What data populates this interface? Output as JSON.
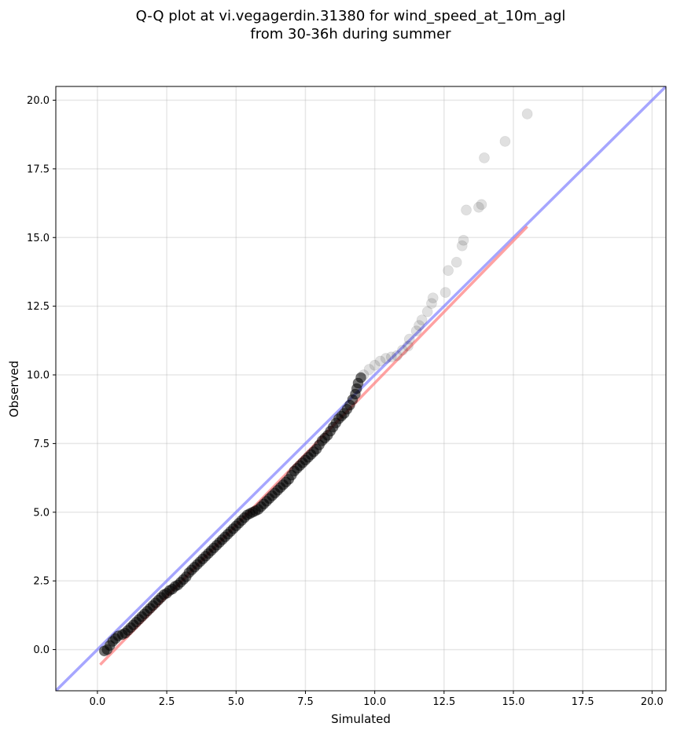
{
  "chart_data": {
    "type": "scatter",
    "title_line1": "Q-Q plot at vi.vegagerdin.31380 for wind_speed_at_10m_agl",
    "title_line2": "from 30-36h during summer",
    "xlabel": "Simulated",
    "ylabel": "Observed",
    "xlim": [
      -1.5,
      20.5
    ],
    "ylim": [
      -1.5,
      20.5
    ],
    "xticks": [
      0.0,
      2.5,
      5.0,
      7.5,
      10.0,
      12.5,
      15.0,
      17.5,
      20.0
    ],
    "yticks": [
      0.0,
      2.5,
      5.0,
      7.5,
      10.0,
      12.5,
      15.0,
      17.5,
      20.0
    ],
    "xtick_labels": [
      "0.0",
      "2.5",
      "5.0",
      "7.5",
      "10.0",
      "12.5",
      "15.0",
      "17.5",
      "20.0"
    ],
    "ytick_labels": [
      "0.0",
      "2.5",
      "5.0",
      "7.5",
      "10.0",
      "12.5",
      "15.0",
      "17.5",
      "20.0"
    ],
    "grid": true,
    "reference_line": {
      "description": "identity y = x",
      "color": "#8080ff"
    },
    "fit_line": {
      "x": [
        0.1,
        15.5
      ],
      "y": [
        -0.55,
        15.4
      ],
      "color": "#ff7b7b"
    },
    "point_color": "#000000",
    "quantiles": [
      {
        "x": 0.25,
        "y": -0.05
      },
      {
        "x": 0.35,
        "y": 0.0
      },
      {
        "x": 0.45,
        "y": 0.15
      },
      {
        "x": 0.55,
        "y": 0.3
      },
      {
        "x": 0.65,
        "y": 0.4
      },
      {
        "x": 0.75,
        "y": 0.5
      },
      {
        "x": 0.9,
        "y": 0.55
      },
      {
        "x": 1.0,
        "y": 0.6
      },
      {
        "x": 1.1,
        "y": 0.7
      },
      {
        "x": 1.2,
        "y": 0.8
      },
      {
        "x": 1.3,
        "y": 0.9
      },
      {
        "x": 1.4,
        "y": 1.0
      },
      {
        "x": 1.5,
        "y": 1.1
      },
      {
        "x": 1.6,
        "y": 1.2
      },
      {
        "x": 1.7,
        "y": 1.3
      },
      {
        "x": 1.8,
        "y": 1.4
      },
      {
        "x": 1.9,
        "y": 1.5
      },
      {
        "x": 2.0,
        "y": 1.6
      },
      {
        "x": 2.1,
        "y": 1.7
      },
      {
        "x": 2.2,
        "y": 1.8
      },
      {
        "x": 2.3,
        "y": 1.9
      },
      {
        "x": 2.4,
        "y": 2.0
      },
      {
        "x": 2.5,
        "y": 2.05
      },
      {
        "x": 2.6,
        "y": 2.15
      },
      {
        "x": 2.7,
        "y": 2.2
      },
      {
        "x": 2.8,
        "y": 2.3
      },
      {
        "x": 2.9,
        "y": 2.35
      },
      {
        "x": 3.0,
        "y": 2.45
      },
      {
        "x": 3.1,
        "y": 2.55
      },
      {
        "x": 3.2,
        "y": 2.65
      },
      {
        "x": 3.3,
        "y": 2.8
      },
      {
        "x": 3.4,
        "y": 2.9
      },
      {
        "x": 3.5,
        "y": 3.0
      },
      {
        "x": 3.6,
        "y": 3.1
      },
      {
        "x": 3.7,
        "y": 3.2
      },
      {
        "x": 3.8,
        "y": 3.3
      },
      {
        "x": 3.9,
        "y": 3.4
      },
      {
        "x": 4.0,
        "y": 3.5
      },
      {
        "x": 4.1,
        "y": 3.6
      },
      {
        "x": 4.2,
        "y": 3.7
      },
      {
        "x": 4.3,
        "y": 3.8
      },
      {
        "x": 4.4,
        "y": 3.9
      },
      {
        "x": 4.5,
        "y": 4.0
      },
      {
        "x": 4.6,
        "y": 4.1
      },
      {
        "x": 4.7,
        "y": 4.2
      },
      {
        "x": 4.8,
        "y": 4.3
      },
      {
        "x": 4.9,
        "y": 4.4
      },
      {
        "x": 5.0,
        "y": 4.5
      },
      {
        "x": 5.1,
        "y": 4.6
      },
      {
        "x": 5.2,
        "y": 4.7
      },
      {
        "x": 5.3,
        "y": 4.8
      },
      {
        "x": 5.4,
        "y": 4.9
      },
      {
        "x": 5.5,
        "y": 4.95
      },
      {
        "x": 5.6,
        "y": 5.0
      },
      {
        "x": 5.7,
        "y": 5.05
      },
      {
        "x": 5.8,
        "y": 5.1
      },
      {
        "x": 5.9,
        "y": 5.2
      },
      {
        "x": 6.0,
        "y": 5.3
      },
      {
        "x": 6.1,
        "y": 5.4
      },
      {
        "x": 6.2,
        "y": 5.5
      },
      {
        "x": 6.3,
        "y": 5.6
      },
      {
        "x": 6.4,
        "y": 5.7
      },
      {
        "x": 6.5,
        "y": 5.8
      },
      {
        "x": 6.6,
        "y": 5.9
      },
      {
        "x": 6.7,
        "y": 6.0
      },
      {
        "x": 6.8,
        "y": 6.1
      },
      {
        "x": 6.9,
        "y": 6.2
      },
      {
        "x": 7.0,
        "y": 6.35
      },
      {
        "x": 7.1,
        "y": 6.5
      },
      {
        "x": 7.2,
        "y": 6.6
      },
      {
        "x": 7.3,
        "y": 6.7
      },
      {
        "x": 7.4,
        "y": 6.8
      },
      {
        "x": 7.5,
        "y": 6.9
      },
      {
        "x": 7.6,
        "y": 7.0
      },
      {
        "x": 7.7,
        "y": 7.1
      },
      {
        "x": 7.8,
        "y": 7.2
      },
      {
        "x": 7.9,
        "y": 7.3
      },
      {
        "x": 8.0,
        "y": 7.45
      },
      {
        "x": 8.1,
        "y": 7.6
      },
      {
        "x": 8.2,
        "y": 7.7
      },
      {
        "x": 8.3,
        "y": 7.8
      },
      {
        "x": 8.4,
        "y": 7.95
      },
      {
        "x": 8.5,
        "y": 8.1
      },
      {
        "x": 8.6,
        "y": 8.25
      },
      {
        "x": 8.7,
        "y": 8.4
      },
      {
        "x": 8.8,
        "y": 8.5
      },
      {
        "x": 8.9,
        "y": 8.6
      },
      {
        "x": 9.0,
        "y": 8.75
      },
      {
        "x": 9.1,
        "y": 8.9
      },
      {
        "x": 9.2,
        "y": 9.1
      },
      {
        "x": 9.3,
        "y": 9.3
      },
      {
        "x": 9.35,
        "y": 9.5
      },
      {
        "x": 9.4,
        "y": 9.7
      },
      {
        "x": 9.5,
        "y": 9.9
      },
      {
        "x": 9.6,
        "y": 10.0
      },
      {
        "x": 9.8,
        "y": 10.2
      },
      {
        "x": 10.0,
        "y": 10.35
      },
      {
        "x": 10.2,
        "y": 10.5
      },
      {
        "x": 10.4,
        "y": 10.6
      },
      {
        "x": 10.6,
        "y": 10.65
      },
      {
        "x": 10.8,
        "y": 10.7
      },
      {
        "x": 11.0,
        "y": 10.9
      },
      {
        "x": 11.2,
        "y": 11.05
      },
      {
        "x": 11.25,
        "y": 11.3
      },
      {
        "x": 11.5,
        "y": 11.6
      },
      {
        "x": 11.6,
        "y": 11.8
      },
      {
        "x": 11.7,
        "y": 12.0
      },
      {
        "x": 11.9,
        "y": 12.3
      },
      {
        "x": 12.05,
        "y": 12.6
      },
      {
        "x": 12.1,
        "y": 12.8
      },
      {
        "x": 12.55,
        "y": 13.0
      },
      {
        "x": 12.65,
        "y": 13.8
      },
      {
        "x": 12.95,
        "y": 14.1
      },
      {
        "x": 13.15,
        "y": 14.7
      },
      {
        "x": 13.2,
        "y": 14.9
      },
      {
        "x": 13.3,
        "y": 16.0
      },
      {
        "x": 13.75,
        "y": 16.1
      },
      {
        "x": 13.85,
        "y": 16.2
      },
      {
        "x": 13.95,
        "y": 17.9
      },
      {
        "x": 14.7,
        "y": 18.5
      },
      {
        "x": 15.5,
        "y": 19.5
      }
    ]
  }
}
